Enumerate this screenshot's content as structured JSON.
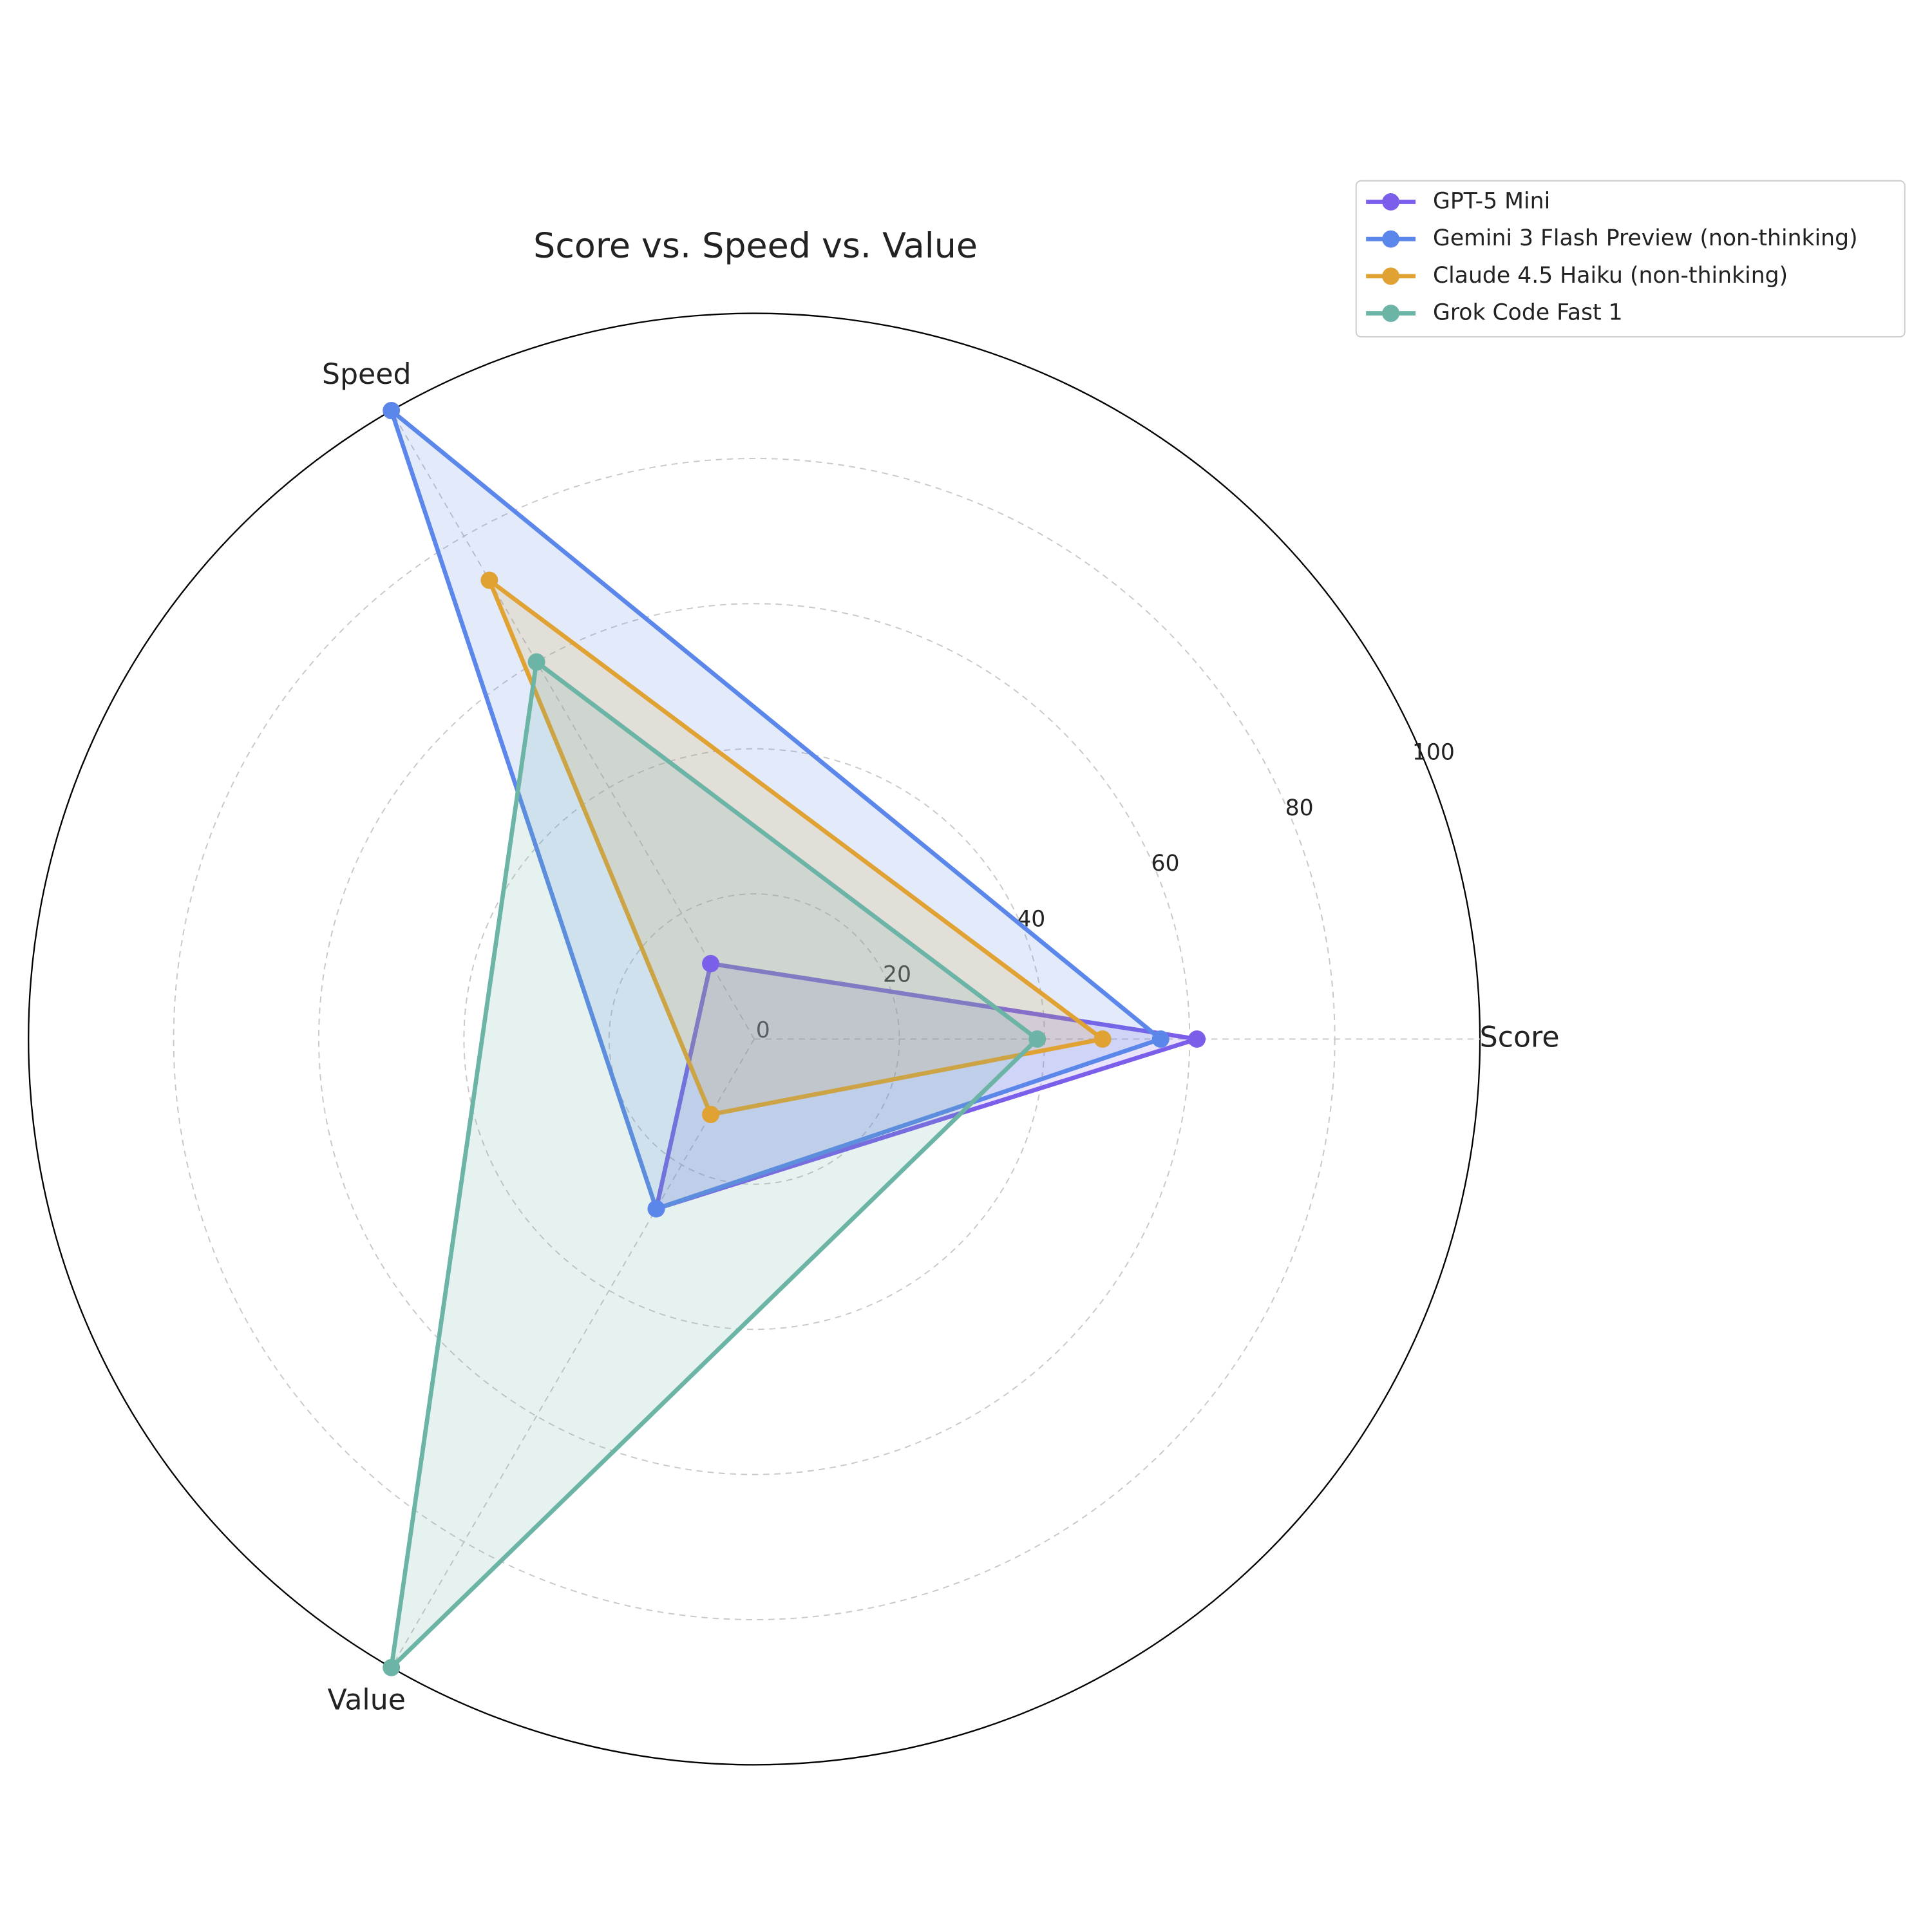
{
  "chart_data": {
    "type": "radar",
    "title": "Score vs. Speed vs. Value",
    "categories": [
      "Score",
      "Speed",
      "Value"
    ],
    "series": [
      {
        "name": "GPT-5 Mini",
        "color": "#7b5fea",
        "values": [
          61,
          12,
          27
        ]
      },
      {
        "name": "Gemini 3 Flash Preview (non-thinking)",
        "color": "#5b87ea",
        "values": [
          56,
          100,
          27
        ]
      },
      {
        "name": "Claude 4.5 Haiku (non-thinking)",
        "color": "#e0a232",
        "values": [
          48,
          73,
          12
        ]
      },
      {
        "name": "Grok Code Fast 1",
        "color": "#6bb4a6",
        "values": [
          39,
          60,
          100
        ]
      }
    ],
    "ylim": [
      0,
      100
    ],
    "yticks": [
      0,
      20,
      40,
      60,
      80,
      100
    ],
    "grid": true,
    "legend": "upper right"
  }
}
